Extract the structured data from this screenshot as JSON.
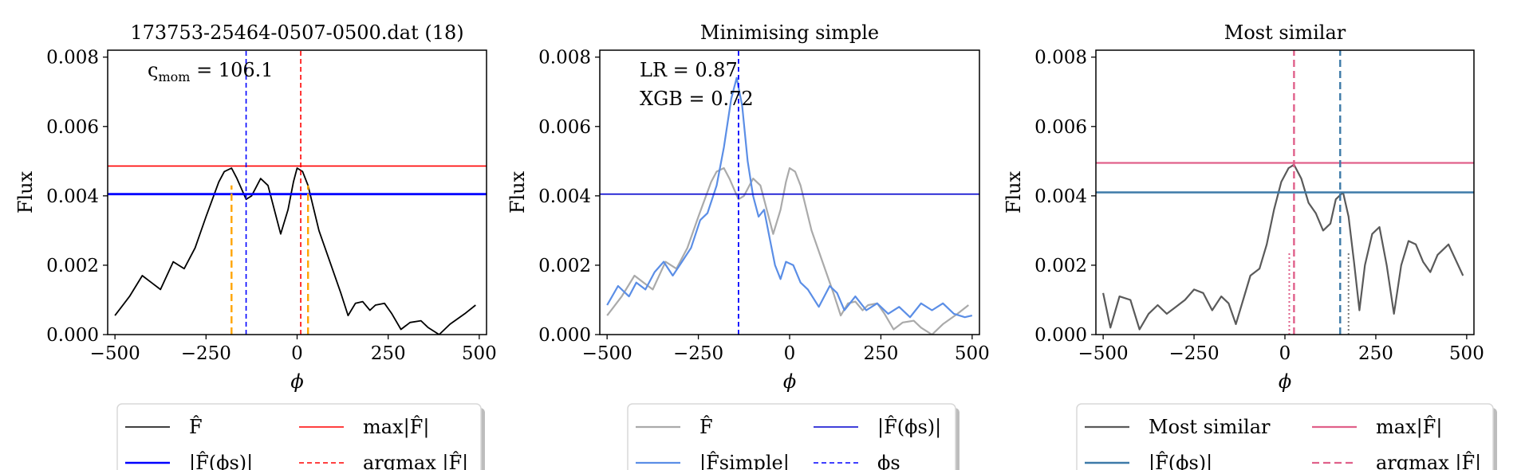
{
  "chart_data": [
    {
      "type": "line",
      "title": "173753-25464-0507-0500.dat (18)",
      "xlabel": "ϕ",
      "ylabel": "Flux",
      "xlim": [
        -520,
        520
      ],
      "ylim": [
        0,
        0.0082
      ],
      "xticks": [
        -500,
        -250,
        0,
        250,
        500
      ],
      "xtick_labels": [
        "−500",
        "−250",
        "0",
        "250",
        "500"
      ],
      "yticks": [
        0,
        0.002,
        0.004,
        0.006,
        0.008
      ],
      "ytick_labels": [
        "0.000",
        "0.002",
        "0.004",
        "0.006",
        "0.008"
      ],
      "annotations": [
        {
          "parts": [
            "ς",
            "mom",
            " = 106.1"
          ]
        }
      ],
      "series": [
        {
          "color": "#000000",
          "width": 1.8,
          "dash": "",
          "x": [
            -500,
            -460,
            -425,
            -400,
            -375,
            -340,
            -310,
            -280,
            -250,
            -215,
            -200,
            -180,
            -165,
            -140,
            -125,
            -100,
            -80,
            -60,
            -45,
            -25,
            -10,
            0,
            15,
            30,
            60,
            90,
            120,
            140,
            160,
            180,
            200,
            215,
            240,
            260,
            285,
            310,
            340,
            360,
            390,
            420,
            460,
            490
          ],
          "values": [
            0.00055,
            0.0011,
            0.0017,
            0.0015,
            0.0013,
            0.0021,
            0.0019,
            0.0025,
            0.0034,
            0.0044,
            0.0047,
            0.0048,
            0.0045,
            0.0039,
            0.004,
            0.0045,
            0.0043,
            0.0035,
            0.0029,
            0.0036,
            0.0044,
            0.0048,
            0.0047,
            0.0043,
            0.003,
            0.0021,
            0.0012,
            0.00055,
            0.0009,
            0.00095,
            0.0007,
            0.00085,
            0.0009,
            0.0006,
            0.00015,
            0.00035,
            0.0004,
            0.0002,
            0.0,
            0.0003,
            0.0006,
            0.00085
          ]
        }
      ],
      "hlines": [
        {
          "y": 0.00486,
          "color": "#ff0000",
          "width": 1.6,
          "dash": ""
        },
        {
          "y": 0.00405,
          "color": "#0000ff",
          "width": 2.8,
          "dash": ""
        }
      ],
      "vlines": [
        {
          "x": -140,
          "color": "#0000ff",
          "width": 1.6,
          "dash": "6,4",
          "y0": 0,
          "y1": 0.0082
        },
        {
          "x": 10,
          "color": "#ff0000",
          "width": 1.6,
          "dash": "6,4",
          "y0": 0,
          "y1": 0.0082
        },
        {
          "x": -180,
          "color": "#ffa500",
          "width": 2.4,
          "dash": "9,5",
          "y0": 0,
          "y1": 0.0043
        },
        {
          "x": 30,
          "color": "#ffa500",
          "width": 2.4,
          "dash": "9,5",
          "y0": 0,
          "y1": 0.0043
        }
      ],
      "legend": {
        "position": "bottom",
        "entries": [
          {
            "label": "F̂",
            "color": "#000000",
            "dash": "",
            "width": 1.6
          },
          {
            "label": "max|F̂|",
            "color": "#ff0000",
            "dash": "",
            "width": 1.6
          },
          {
            "label": "|F̂(ϕs)|",
            "color": "#0000ff",
            "dash": "",
            "width": 2.6
          },
          {
            "label": "argmax |F̂|",
            "color": "#ff0000",
            "dash": "6,4",
            "width": 1.6
          }
        ]
      }
    },
    {
      "type": "line",
      "title": "Minimising simple",
      "xlabel": "ϕ",
      "ylabel": "Flux",
      "xlim": [
        -520,
        520
      ],
      "ylim": [
        0,
        0.0082
      ],
      "xticks": [
        -500,
        -250,
        0,
        250,
        500
      ],
      "xtick_labels": [
        "−500",
        "−250",
        "0",
        "250",
        "500"
      ],
      "yticks": [
        0,
        0.002,
        0.004,
        0.006,
        0.008
      ],
      "ytick_labels": [
        "0.000",
        "0.002",
        "0.004",
        "0.006",
        "0.008"
      ],
      "annotations": [
        {
          "parts": [
            "LR = 0.87"
          ]
        },
        {
          "parts": [
            "XGB = 0.72"
          ]
        }
      ],
      "series": [
        {
          "color": "#aaaaaa",
          "width": 2.2,
          "dash": "",
          "x": [
            -500,
            -460,
            -425,
            -400,
            -375,
            -340,
            -310,
            -280,
            -250,
            -215,
            -200,
            -180,
            -165,
            -140,
            -125,
            -100,
            -80,
            -60,
            -45,
            -25,
            -10,
            0,
            15,
            30,
            60,
            90,
            120,
            140,
            160,
            180,
            200,
            215,
            240,
            260,
            285,
            310,
            340,
            360,
            390,
            420,
            460,
            490
          ],
          "values": [
            0.00055,
            0.0011,
            0.0017,
            0.0015,
            0.0013,
            0.0021,
            0.0019,
            0.0025,
            0.0034,
            0.0044,
            0.0047,
            0.0048,
            0.0045,
            0.0039,
            0.004,
            0.0045,
            0.0043,
            0.0035,
            0.0029,
            0.0036,
            0.0044,
            0.0048,
            0.0047,
            0.0043,
            0.003,
            0.0021,
            0.0012,
            0.00055,
            0.0009,
            0.00095,
            0.0007,
            0.00085,
            0.0009,
            0.0006,
            0.00015,
            0.00035,
            0.0004,
            0.0002,
            0.0,
            0.0003,
            0.0006,
            0.00085
          ]
        },
        {
          "color": "#5b8ee6",
          "width": 2.2,
          "dash": "",
          "x": [
            -500,
            -470,
            -440,
            -420,
            -395,
            -370,
            -345,
            -320,
            -295,
            -270,
            -245,
            -225,
            -200,
            -180,
            -160,
            -145,
            -130,
            -115,
            -100,
            -85,
            -70,
            -55,
            -40,
            -25,
            -10,
            10,
            30,
            50,
            80,
            110,
            130,
            150,
            180,
            210,
            240,
            270,
            300,
            330,
            360,
            390,
            420,
            450,
            480,
            500
          ],
          "values": [
            0.00085,
            0.0014,
            0.0011,
            0.0015,
            0.0013,
            0.0018,
            0.0021,
            0.0017,
            0.0021,
            0.0025,
            0.0033,
            0.0035,
            0.0043,
            0.0054,
            0.0068,
            0.0074,
            0.0066,
            0.005,
            0.004,
            0.0034,
            0.0036,
            0.0028,
            0.002,
            0.0016,
            0.0021,
            0.002,
            0.0015,
            0.0013,
            0.0008,
            0.0014,
            0.0012,
            0.0007,
            0.0011,
            0.0007,
            0.0009,
            0.0006,
            0.0008,
            0.0005,
            0.0009,
            0.0007,
            0.0009,
            0.0006,
            0.0005,
            0.00055
          ]
        }
      ],
      "hlines": [
        {
          "y": 0.00405,
          "color": "#0000cd",
          "width": 1.6,
          "dash": ""
        }
      ],
      "vlines": [
        {
          "x": -140,
          "color": "#0000ff",
          "width": 1.8,
          "dash": "6,4",
          "y0": 0,
          "y1": 0.0082
        }
      ],
      "legend": {
        "position": "bottom",
        "entries": [
          {
            "label": "F̂",
            "color": "#aaaaaa",
            "dash": "",
            "width": 2.2
          },
          {
            "label": "|F̂(ϕs)|",
            "color": "#0000cd",
            "dash": "",
            "width": 1.6
          },
          {
            "label": "|F̂simple|",
            "color": "#5b8ee6",
            "dash": "",
            "width": 2.2
          },
          {
            "label": "ϕs",
            "color": "#0000ff",
            "dash": "6,4",
            "width": 1.6
          }
        ]
      }
    },
    {
      "type": "line",
      "title": "Most similar",
      "xlabel": "ϕ",
      "ylabel": "Flux",
      "xlim": [
        -520,
        520
      ],
      "ylim": [
        0,
        0.0082
      ],
      "xticks": [
        -500,
        -250,
        0,
        250,
        500
      ],
      "xtick_labels": [
        "−500",
        "−250",
        "0",
        "250",
        "500"
      ],
      "yticks": [
        0,
        0.002,
        0.004,
        0.006,
        0.008
      ],
      "ytick_labels": [
        "0.000",
        "0.002",
        "0.004",
        "0.006",
        "0.008"
      ],
      "annotations": [],
      "series": [
        {
          "color": "#5a5a5a",
          "width": 2.2,
          "dash": "",
          "x": [
            -500,
            -480,
            -455,
            -425,
            -400,
            -375,
            -350,
            -325,
            -300,
            -275,
            -250,
            -225,
            -200,
            -175,
            -155,
            -135,
            -115,
            -95,
            -70,
            -50,
            -30,
            -10,
            10,
            25,
            45,
            65,
            85,
            105,
            125,
            140,
            160,
            175,
            190,
            205,
            220,
            240,
            260,
            280,
            300,
            320,
            340,
            360,
            380,
            400,
            420,
            450,
            490
          ],
          "values": [
            0.0012,
            0.0002,
            0.0011,
            0.001,
            0.00015,
            0.0006,
            0.00085,
            0.0006,
            0.0008,
            0.001,
            0.0013,
            0.0012,
            0.0007,
            0.0011,
            0.0009,
            0.0003,
            0.001,
            0.0017,
            0.0019,
            0.0026,
            0.0036,
            0.0044,
            0.0048,
            0.0049,
            0.0045,
            0.0038,
            0.0035,
            0.003,
            0.0032,
            0.0039,
            0.0041,
            0.0034,
            0.0021,
            0.0007,
            0.002,
            0.0029,
            0.0031,
            0.002,
            0.0006,
            0.002,
            0.0027,
            0.0026,
            0.0021,
            0.0018,
            0.0023,
            0.0026,
            0.0017
          ]
        }
      ],
      "hlines": [
        {
          "y": 0.00495,
          "color": "#e0608a",
          "width": 2.2,
          "dash": ""
        },
        {
          "y": 0.0041,
          "color": "#3d7aa8",
          "width": 2.4,
          "dash": ""
        }
      ],
      "vlines": [
        {
          "x": 25,
          "color": "#e0608a",
          "width": 2.4,
          "dash": "9,5",
          "y0": 0,
          "y1": 0.0082
        },
        {
          "x": 152,
          "color": "#3d7aa8",
          "width": 2.4,
          "dash": "9,5",
          "y0": 0,
          "y1": 0.0082
        },
        {
          "x": 12,
          "color": "#e0608a",
          "width": 2.0,
          "dash": "2,3",
          "y0": 0,
          "y1": 0.0024
        },
        {
          "x": 175,
          "color": "#777777",
          "width": 2.0,
          "dash": "2,3",
          "y0": 0,
          "y1": 0.0024
        }
      ],
      "legend": {
        "position": "bottom",
        "entries": [
          {
            "label": "Most similar",
            "color": "#5a5a5a",
            "dash": "",
            "width": 2.2
          },
          {
            "label": "max|F̂|",
            "color": "#e0608a",
            "dash": "",
            "width": 2.2
          },
          {
            "label": "|F̂(ϕs)|",
            "color": "#3d7aa8",
            "dash": "",
            "width": 2.4
          },
          {
            "label": "argmax |F̂|",
            "color": "#e0608a",
            "dash": "9,5",
            "width": 2.2
          }
        ]
      }
    }
  ]
}
